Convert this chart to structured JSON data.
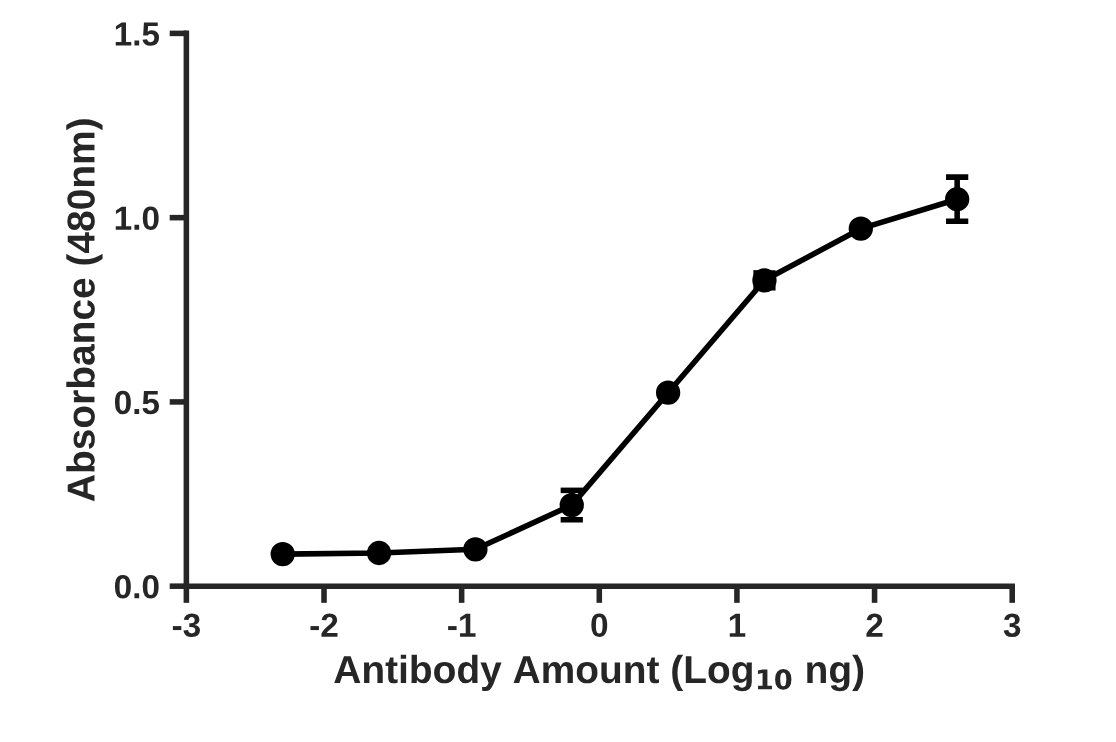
{
  "chart_data": {
    "type": "line",
    "xlabel": "Antibody Amount (Log$_{10}$ ng)",
    "ylabel": "Absorbance (480nm)",
    "x": [
      -2.3,
      -1.6,
      -0.9,
      -0.2,
      0.5,
      1.2,
      1.9,
      2.6
    ],
    "series": [
      {
        "color": "#000000",
        "values": [
          0.087,
          0.09,
          0.1,
          0.22,
          0.525,
          0.83,
          0.97,
          1.05
        ],
        "errors": [
          null,
          null,
          null,
          0.04,
          null,
          0.02,
          null,
          0.06
        ]
      }
    ],
    "xlim": [
      -3,
      3
    ],
    "xticks": [
      -3,
      -2,
      -1,
      0,
      1,
      2,
      3
    ],
    "ylim": [
      0,
      1.5
    ],
    "yticks": [
      {
        "value": 0,
        "label": "0.0"
      },
      {
        "value": 0.5,
        "label": "0.5"
      },
      {
        "value": 1.0,
        "label": "1.0"
      },
      {
        "value": 1.5,
        "label": "1.5"
      }
    ],
    "marker": "circle",
    "line_style": "solid",
    "grid": false,
    "legend": false
  }
}
